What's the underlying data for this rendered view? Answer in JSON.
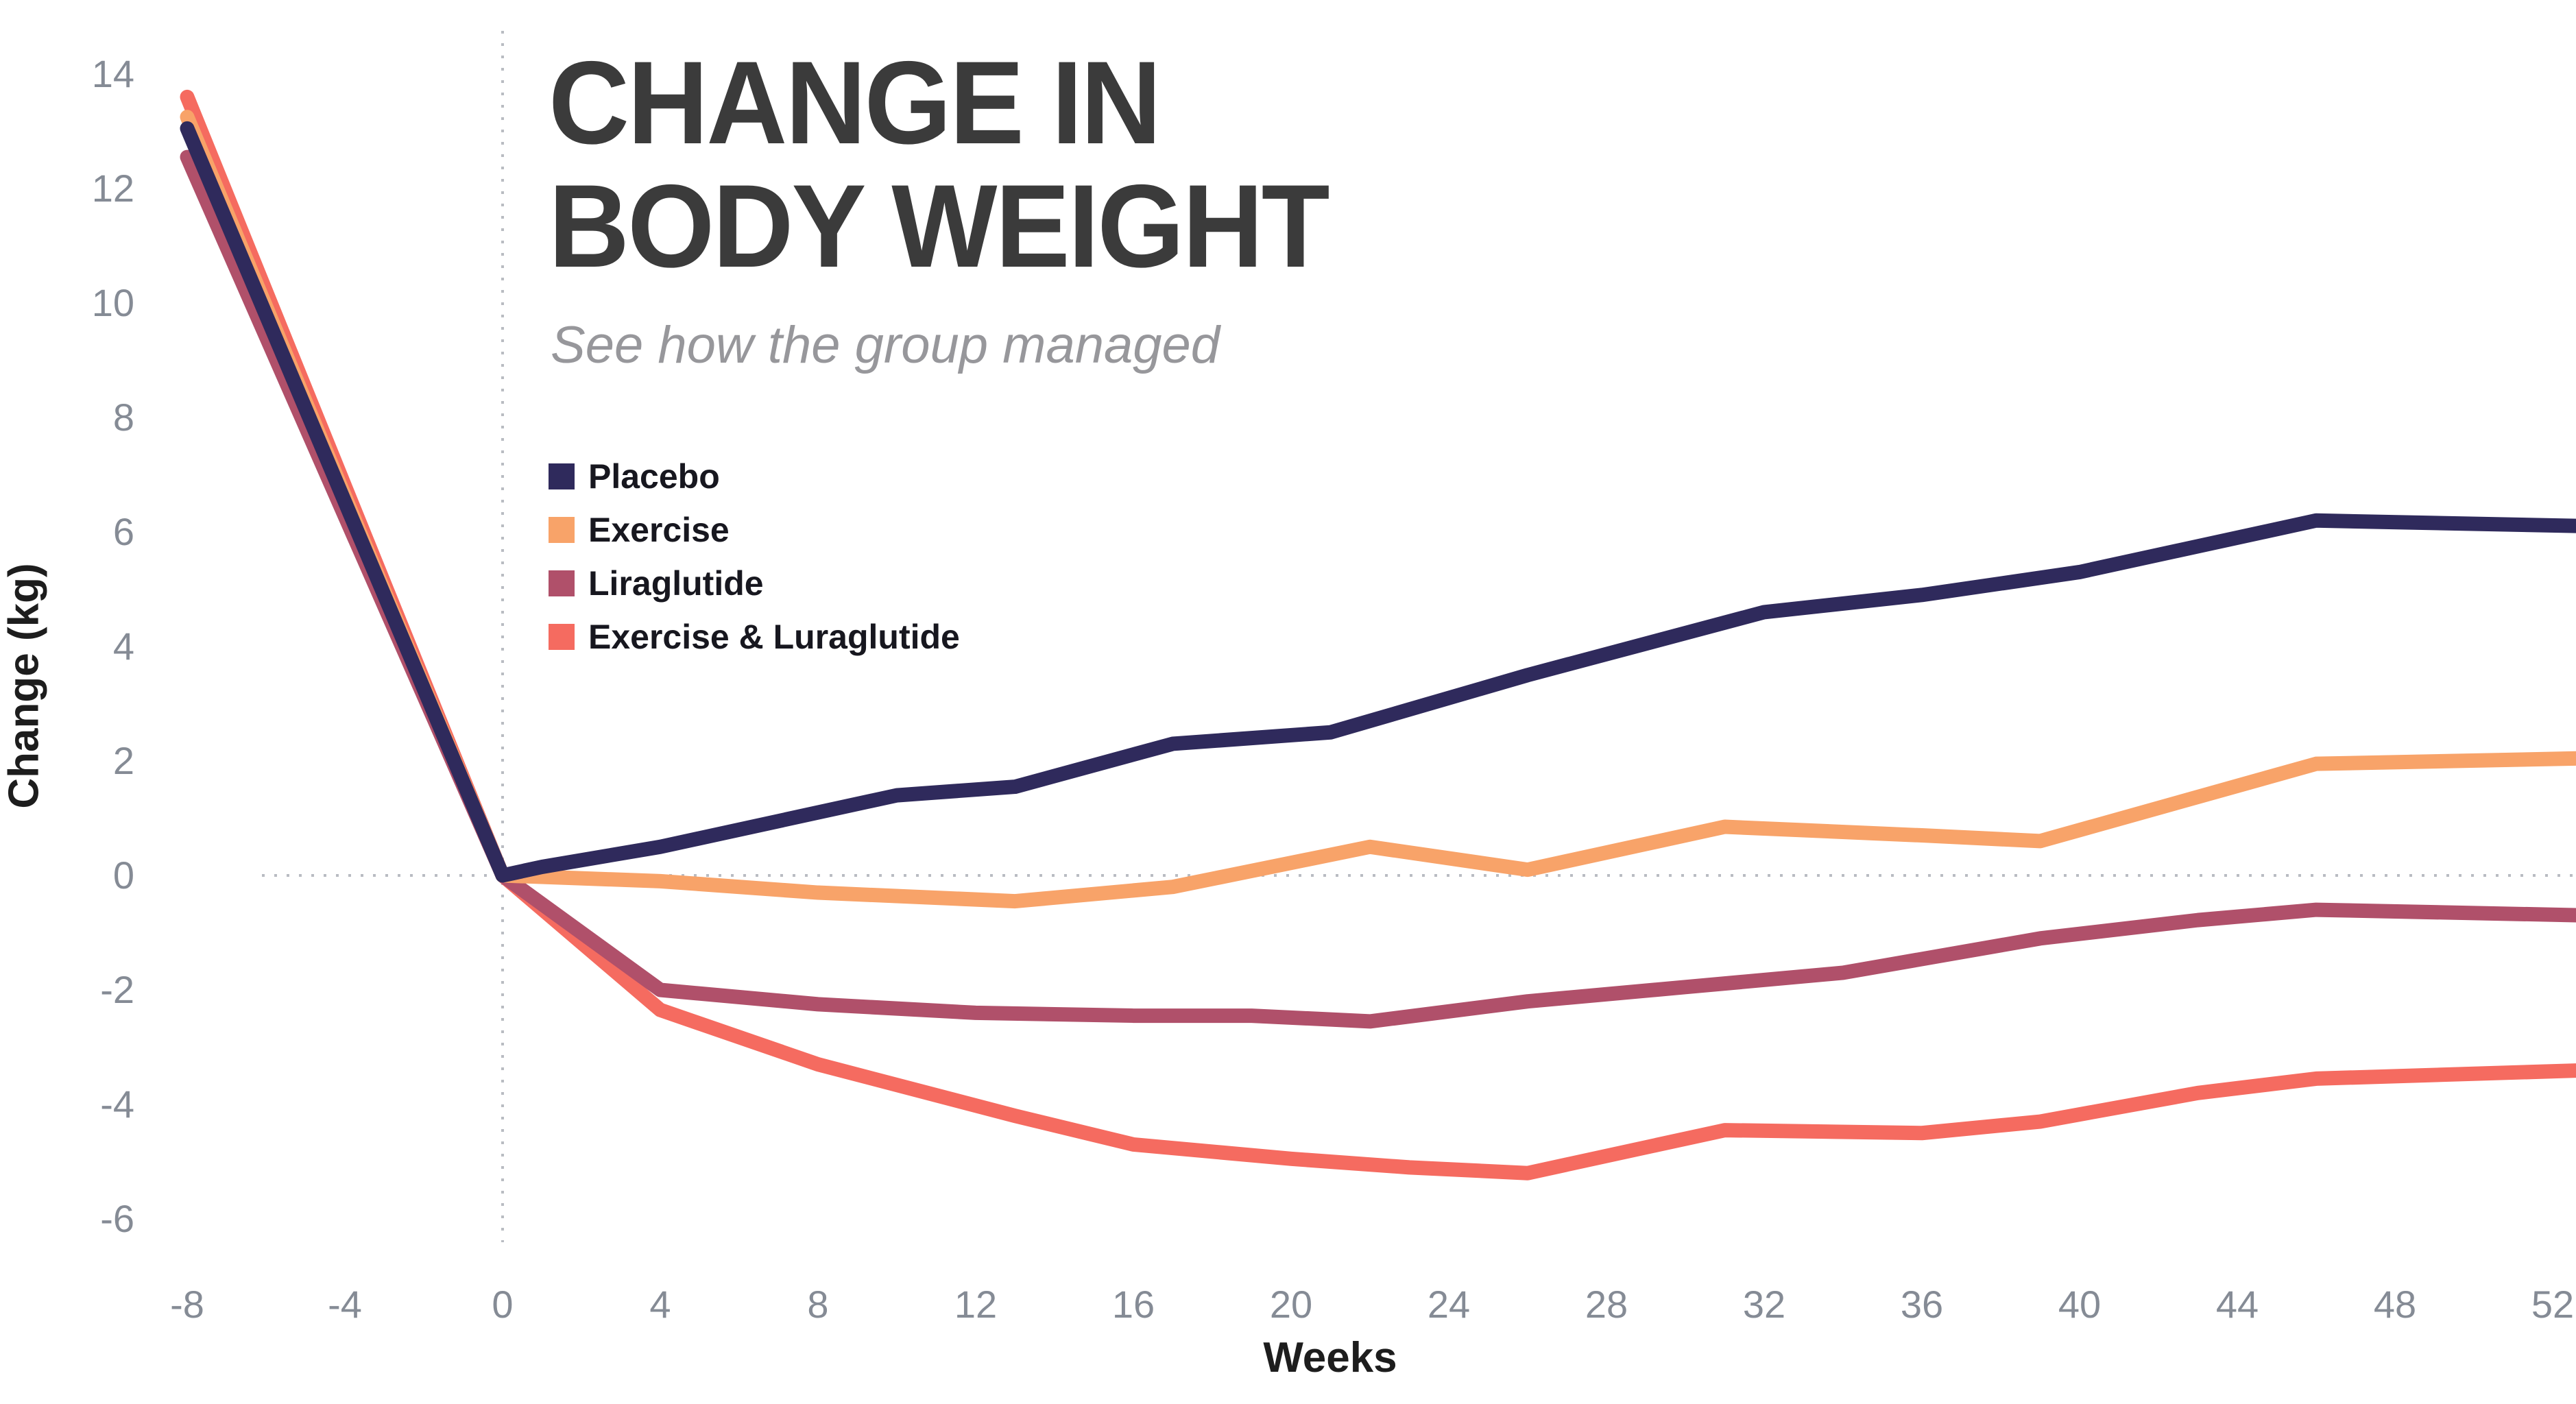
{
  "header": {
    "title_line1": "CHANGE IN",
    "title_line2": "BODY WEIGHT",
    "subtitle": "See how the group managed"
  },
  "axes": {
    "x_title": "Weeks",
    "y_title": "Change (kg)"
  },
  "colors": {
    "background": "#ffffff",
    "title_text": "#3b3b3b",
    "subtitle_text": "#97979b",
    "tick_text": "#858b95",
    "dotted_guides": "#b9bcc2"
  },
  "chart_data": {
    "type": "line",
    "title": "CHANGE IN BODY WEIGHT",
    "subtitle": "See how the group managed",
    "xlabel": "Weeks",
    "ylabel": "Change (kg)",
    "xlim": [
      -8,
      52.6
    ],
    "ylim": [
      -6,
      14
    ],
    "x_ticks": [
      -8,
      -4,
      0,
      4,
      8,
      12,
      16,
      20,
      24,
      28,
      32,
      36,
      40,
      44,
      48,
      52
    ],
    "y_ticks": [
      -6,
      -4,
      -2,
      0,
      2,
      4,
      6,
      8,
      10,
      12,
      14
    ],
    "grid": "none; dotted horizontal line at y=0 and dotted vertical line at x=0",
    "legend_position": "upper-left below subtitle",
    "series": [
      {
        "name": "Placebo",
        "color": "#2F2A5C",
        "points": [
          [
            -8,
            13.05
          ],
          [
            0,
            0
          ],
          [
            1,
            0.15
          ],
          [
            4,
            0.5
          ],
          [
            10,
            1.4
          ],
          [
            13,
            1.55
          ],
          [
            17,
            2.3
          ],
          [
            21,
            2.5
          ],
          [
            26,
            3.5
          ],
          [
            32,
            4.6
          ],
          [
            36,
            4.9
          ],
          [
            40,
            5.3
          ],
          [
            46,
            6.2
          ],
          [
            53,
            6.1
          ]
        ]
      },
      {
        "name": "Exercise",
        "color": "#F8A369",
        "points": [
          [
            -8,
            13.25
          ],
          [
            0,
            0
          ],
          [
            4,
            -0.1
          ],
          [
            8,
            -0.3
          ],
          [
            13,
            -0.45
          ],
          [
            17,
            -0.2
          ],
          [
            22,
            0.5
          ],
          [
            26,
            0.1
          ],
          [
            31,
            0.85
          ],
          [
            36,
            0.7
          ],
          [
            39,
            0.6
          ],
          [
            46,
            1.95
          ],
          [
            53,
            2.05
          ]
        ]
      },
      {
        "name": "Liraglutide",
        "color": "#B0506A",
        "points": [
          [
            -8,
            12.55
          ],
          [
            0,
            0
          ],
          [
            4,
            -2.0
          ],
          [
            8,
            -2.25
          ],
          [
            12,
            -2.4
          ],
          [
            16,
            -2.45
          ],
          [
            19,
            -2.45
          ],
          [
            22,
            -2.55
          ],
          [
            26,
            -2.2
          ],
          [
            30,
            -1.95
          ],
          [
            34,
            -1.7
          ],
          [
            39,
            -1.1
          ],
          [
            43,
            -0.78
          ],
          [
            46,
            -0.6
          ],
          [
            53,
            -0.7
          ]
        ]
      },
      {
        "name": "Exercise & Luraglutide",
        "color": "#F56B60",
        "points": [
          [
            -8,
            13.6
          ],
          [
            0,
            0
          ],
          [
            4,
            -2.35
          ],
          [
            8,
            -3.3
          ],
          [
            13,
            -4.2
          ],
          [
            16,
            -4.7
          ],
          [
            20,
            -4.95
          ],
          [
            23,
            -5.1
          ],
          [
            26,
            -5.2
          ],
          [
            31,
            -4.45
          ],
          [
            36,
            -4.5
          ],
          [
            39,
            -4.3
          ],
          [
            43,
            -3.8
          ],
          [
            46,
            -3.55
          ],
          [
            53,
            -3.4
          ]
        ]
      }
    ]
  }
}
